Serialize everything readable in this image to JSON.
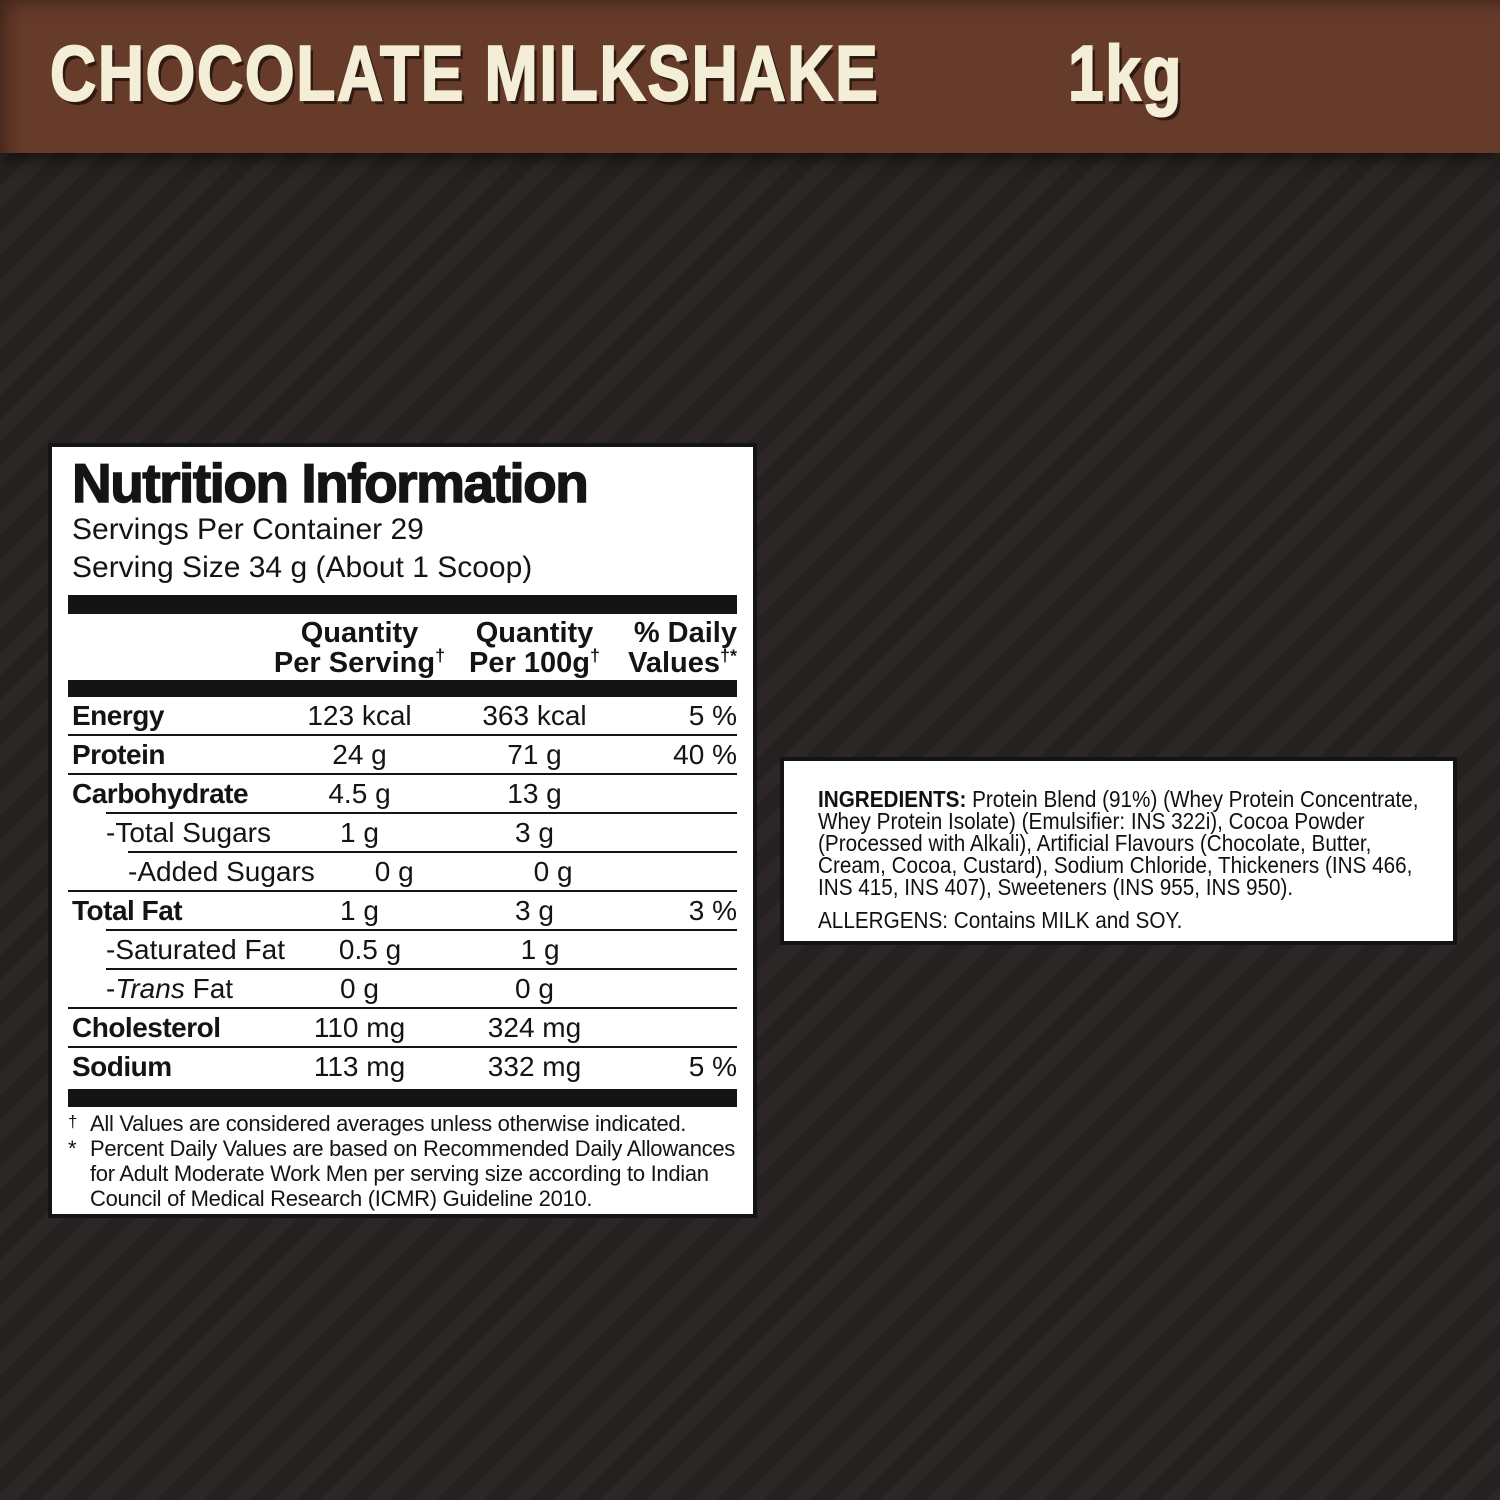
{
  "banner": {
    "title": "CHOCOLATE MILKSHAKE",
    "weight": "1kg"
  },
  "nutrition": {
    "title": "Nutrition Information",
    "servings_per_container": "Servings Per Container 29",
    "serving_size": "Serving Size 34 g (About 1 Scoop)",
    "columns": [
      {
        "line1": "Quantity",
        "line2": "Per Serving",
        "sup": "†"
      },
      {
        "line1": "Quantity",
        "line2": "Per 100g",
        "sup": "†"
      },
      {
        "line1": "% Daily",
        "line2": "Values",
        "sup": "†*"
      }
    ],
    "rows": [
      {
        "label": "Energy",
        "per_serving": "123 kcal",
        "per_100g": "363 kcal",
        "daily": "5 %",
        "level": 0,
        "rule": "full"
      },
      {
        "label": "Protein",
        "per_serving": "24 g",
        "per_100g": "71 g",
        "daily": "40 %",
        "level": 0,
        "rule": "full"
      },
      {
        "label": "Carbohydrate",
        "per_serving": "4.5 g",
        "per_100g": "13 g",
        "daily": "",
        "level": 0,
        "rule": "indent1"
      },
      {
        "label": "-Total Sugars",
        "per_serving": "1 g",
        "per_100g": "3 g",
        "daily": "",
        "level": 1,
        "rule": "indent2"
      },
      {
        "label": "-Added Sugars",
        "per_serving": "0 g",
        "per_100g": "0 g",
        "daily": "",
        "level": 2,
        "rule": "full"
      },
      {
        "label": "Total Fat",
        "per_serving": "1 g",
        "per_100g": "3 g",
        "daily": "3 %",
        "level": 0,
        "rule": "indent1"
      },
      {
        "label": "-Saturated Fat",
        "per_serving": "0.5 g",
        "per_100g": "1 g",
        "daily": "",
        "level": 1,
        "rule": "indent1"
      },
      {
        "label": "-Trans Fat",
        "italic_word": "Trans",
        "per_serving": "0 g",
        "per_100g": "0 g",
        "daily": "",
        "level": 1,
        "rule": "full"
      },
      {
        "label": "Cholesterol",
        "per_serving": "110 mg",
        "per_100g": "324 mg",
        "daily": "",
        "level": 0,
        "rule": "full"
      },
      {
        "label": "Sodium",
        "per_serving": "113 mg",
        "per_100g": "332 mg",
        "daily": "5 %",
        "level": 0,
        "rule": "none"
      }
    ],
    "footnotes": [
      {
        "marker": "†",
        "text": "All Values are considered averages unless otherwise indicated."
      },
      {
        "marker": "*",
        "text": "Percent Daily Values are based on Recommended Daily Allowances for Adult Moderate Work Men per serving size according to Indian Council of Medical Research (ICMR) Guideline 2010."
      }
    ]
  },
  "ingredients": {
    "label": "INGREDIENTS:",
    "text": " Protein Blend (91%) (Whey Protein Concentrate, Whey Protein Isolate) (Emulsifier: INS 322i), Cocoa Powder (Processed with Alkali), Artificial Flavours (Chocolate, Butter, Cream, Cocoa, Custard), Sodium Chloride, Thickeners (INS 466, INS 415, INS 407), Sweeteners (INS 955, INS 950).",
    "allergens": "ALLERGENS: Contains MILK and SOY."
  },
  "colors": {
    "banner_bg": "#673b2a",
    "banner_text": "#f4eed6",
    "banner_shadow": "#2e1a12",
    "bg_dark": "#262121",
    "bg_stripe": "#2c2626",
    "panel_bg": "#ffffff",
    "ink": "#141414"
  }
}
